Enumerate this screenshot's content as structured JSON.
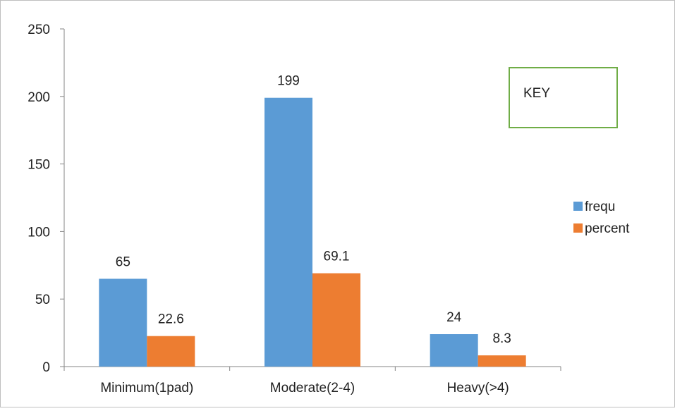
{
  "chart_data": {
    "type": "bar",
    "categories": [
      "Minimum(1pad)",
      "Moderate(2-4)",
      "Heavy(>4)"
    ],
    "series": [
      {
        "name": "frequ",
        "values": [
          65,
          199,
          24
        ],
        "color": "#5b9bd5"
      },
      {
        "name": "percent",
        "values": [
          22.6,
          69.1,
          8.3
        ],
        "color": "#ed7d31"
      }
    ],
    "data_labels": [
      [
        "65",
        "199",
        "24"
      ],
      [
        "22.6",
        "69.1",
        "8.3"
      ]
    ],
    "title": "",
    "xlabel": "",
    "ylabel": "",
    "ylim": [
      0,
      250
    ],
    "yticks": [
      "0",
      "50",
      "100",
      "150",
      "200",
      "250"
    ],
    "grid": false,
    "legend_position": "right",
    "annotation_box": {
      "text": "KEY",
      "border_color": "#70ad47"
    }
  }
}
